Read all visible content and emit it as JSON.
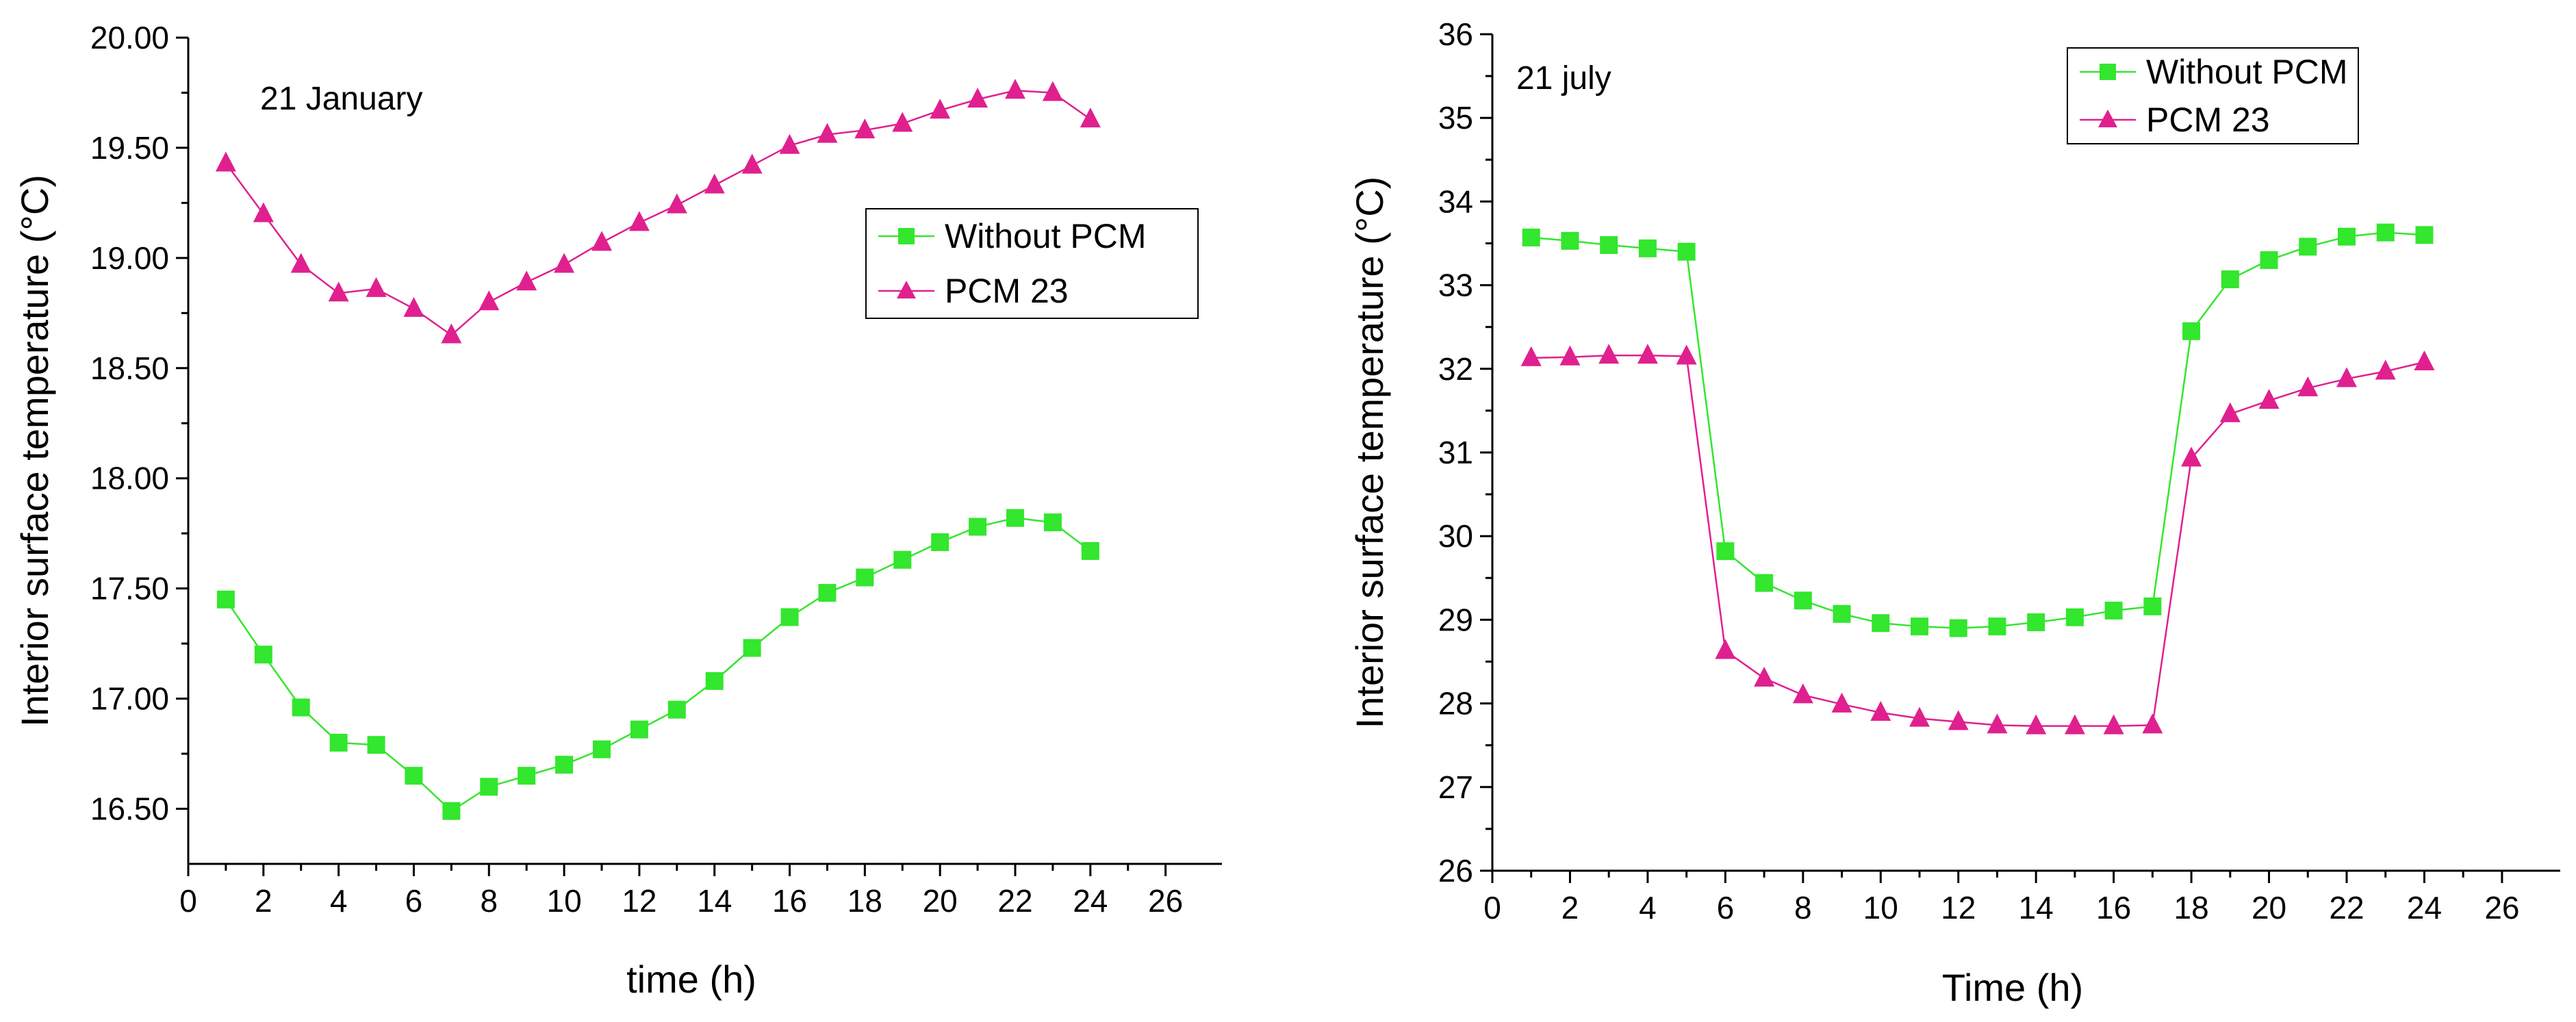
{
  "chart_data": [
    {
      "type": "line",
      "annotation": "21 January",
      "title": "",
      "xlabel": "time (h)",
      "ylabel": "Interior surface temperature (°C)",
      "xlim": [
        0,
        27.5
      ],
      "ylim": [
        16.25,
        20.0
      ],
      "xticks": [
        0,
        2,
        4,
        6,
        8,
        10,
        12,
        14,
        16,
        18,
        20,
        22,
        24,
        26
      ],
      "yticks": [
        16.5,
        17.0,
        17.5,
        18.0,
        18.5,
        19.0,
        19.5,
        20.0
      ],
      "ytick_labels": [
        "16.50",
        "17.00",
        "17.50",
        "18.00",
        "18.50",
        "19.00",
        "19.50",
        "20.00"
      ],
      "legend_position": "center-right",
      "x": [
        1,
        2,
        3,
        4,
        5,
        6,
        7,
        8,
        9,
        10,
        11,
        12,
        13,
        14,
        15,
        16,
        17,
        18,
        19,
        20,
        21,
        22,
        23,
        24
      ],
      "series": [
        {
          "name": "Without PCM",
          "color": "#33e62e",
          "marker": "square",
          "values": [
            17.45,
            17.2,
            16.96,
            16.8,
            16.79,
            16.65,
            16.49,
            16.6,
            16.65,
            16.7,
            16.77,
            16.86,
            16.95,
            17.08,
            17.23,
            17.37,
            17.48,
            17.55,
            17.63,
            17.71,
            17.78,
            17.82,
            17.8,
            17.67
          ]
        },
        {
          "name": "PCM 23",
          "color": "#e0208f",
          "marker": "triangle",
          "values": [
            19.43,
            19.2,
            18.97,
            18.84,
            18.86,
            18.77,
            18.65,
            18.8,
            18.89,
            18.97,
            19.07,
            19.16,
            19.24,
            19.33,
            19.42,
            19.51,
            19.56,
            19.58,
            19.61,
            19.67,
            19.72,
            19.76,
            19.75,
            19.63
          ]
        }
      ]
    },
    {
      "type": "line",
      "annotation": "21 july",
      "title": "",
      "xlabel": "Time (h)",
      "ylabel": "Interior surface temperature (°C)",
      "xlim": [
        0,
        27.5
      ],
      "ylim": [
        26,
        36
      ],
      "xticks": [
        0,
        2,
        4,
        6,
        8,
        10,
        12,
        14,
        16,
        18,
        20,
        22,
        24,
        26
      ],
      "yticks": [
        26,
        27,
        28,
        29,
        30,
        31,
        32,
        33,
        34,
        35,
        36
      ],
      "ytick_labels": [
        "26",
        "27",
        "28",
        "29",
        "30",
        "31",
        "32",
        "33",
        "34",
        "35",
        "36"
      ],
      "legend_position": "top-right",
      "x": [
        1,
        2,
        3,
        4,
        5,
        6,
        7,
        8,
        9,
        10,
        11,
        12,
        13,
        14,
        15,
        16,
        17,
        18,
        19,
        20,
        21,
        22,
        23,
        24
      ],
      "series": [
        {
          "name": "Without PCM",
          "color": "#33e62e",
          "marker": "square",
          "values": [
            33.57,
            33.53,
            33.48,
            33.44,
            33.4,
            29.82,
            29.44,
            29.23,
            29.07,
            28.96,
            28.92,
            28.9,
            28.92,
            28.97,
            29.03,
            29.11,
            29.16,
            32.45,
            33.07,
            33.3,
            33.46,
            33.58,
            33.63,
            33.6
          ]
        },
        {
          "name": "PCM 23",
          "color": "#e0208f",
          "marker": "triangle",
          "values": [
            32.13,
            32.14,
            32.16,
            32.16,
            32.15,
            28.63,
            28.3,
            28.1,
            27.99,
            27.89,
            27.82,
            27.78,
            27.74,
            27.73,
            27.73,
            27.73,
            27.74,
            30.93,
            31.46,
            31.62,
            31.77,
            31.88,
            31.97,
            32.08
          ]
        }
      ]
    }
  ]
}
